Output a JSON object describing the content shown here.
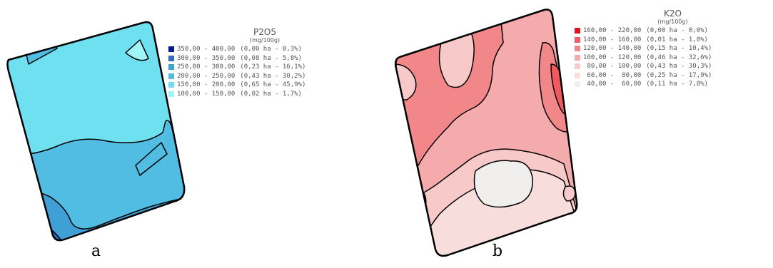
{
  "maps": [
    {
      "id": "a",
      "panel_label": "a",
      "legend_title": "P2O5",
      "legend_unit": "(mg/100g)",
      "classes": [
        {
          "range": "350,00 - 400,00",
          "stats": "(0,00 ha - 0,3%)",
          "color": "#05199e"
        },
        {
          "range": "300,00 - 350,00",
          "stats": "(0,08 ha - 5,8%)",
          "color": "#2e6cc6"
        },
        {
          "range": "250,00 - 300,00",
          "stats": "(0,23 ha - 16,1%)",
          "color": "#3fa0d6"
        },
        {
          "range": "200,00 - 250,00",
          "stats": "(0,43 ha - 30,2%)",
          "color": "#52bde2"
        },
        {
          "range": "150,00 - 200,00",
          "stats": "(0,65 ha - 45,9%)",
          "color": "#6fe0ef"
        },
        {
          "range": "100,00 - 150,00",
          "stats": "(0,02 ha - 1,7%)",
          "color": "#9ff5f8"
        }
      ]
    },
    {
      "id": "b",
      "panel_label": "b",
      "legend_title": "K2O",
      "legend_unit": "(mg/100g)",
      "classes": [
        {
          "range": "160,00 - 220,00",
          "stats": "(0,00 ha - 0,0%)",
          "color": "#e8141b"
        },
        {
          "range": "140,00 - 160,00",
          "stats": "(0,01 ha - 1,0%)",
          "color": "#ee5a5e"
        },
        {
          "range": "120,00 - 140,00",
          "stats": "(0,15 ha - 10,4%)",
          "color": "#f2878a"
        },
        {
          "range": "100,00 - 120,00",
          "stats": "(0,46 ha - 32,6%)",
          "color": "#f5aaab"
        },
        {
          "range": " 80,00 - 100,00",
          "stats": "(0,43 ha - 30,3%)",
          "color": "#f7c9c9"
        },
        {
          "range": " 60,00 -  80,00",
          "stats": "(0,25 ha - 17,9%)",
          "color": "#f8dddd"
        },
        {
          "range": " 40,00 -  60,00",
          "stats": "(0,11 ha - 7,8%)",
          "color": "#f1eeee"
        }
      ]
    }
  ]
}
